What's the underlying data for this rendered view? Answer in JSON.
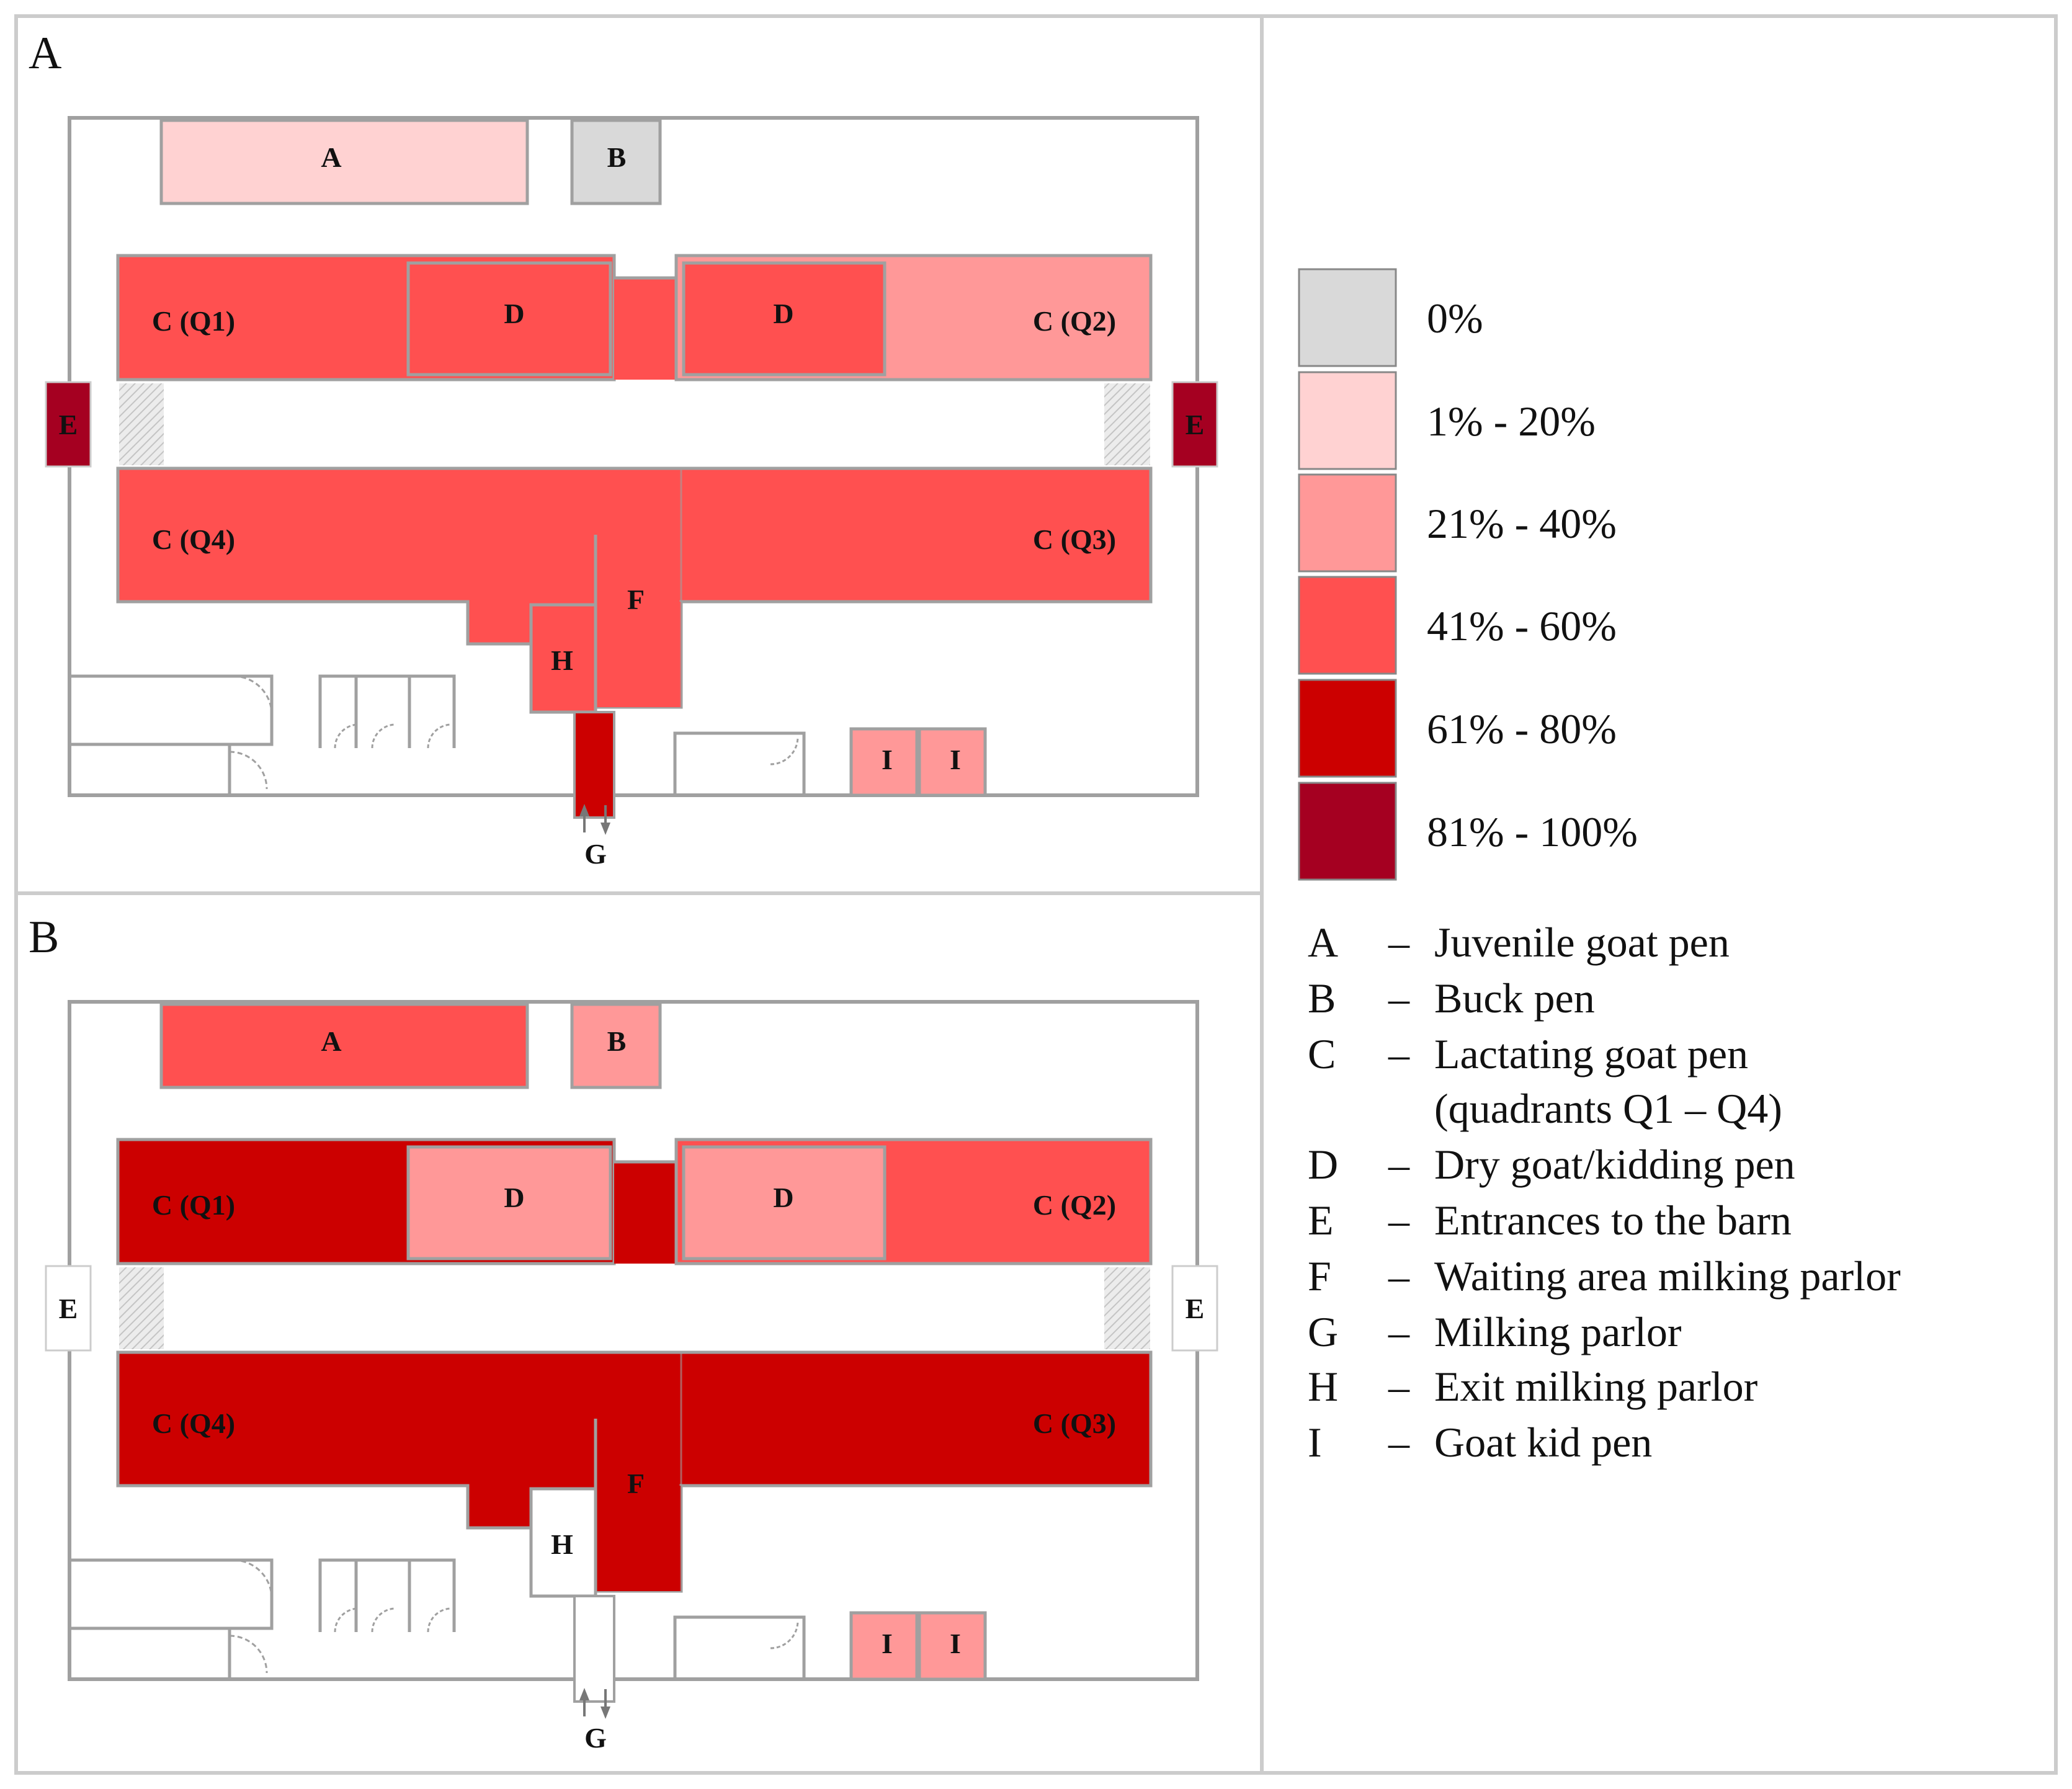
{
  "colors": {
    "p0": "#d9d9d9",
    "p1_20": "#ffd2d2",
    "p21_40": "#ff9898",
    "p41_60": "#ff5050",
    "p61_80": "#cc0000",
    "p81_100": "#a50021",
    "white": "#ffffff"
  },
  "panels": [
    {
      "id": "A",
      "label": "A",
      "zones": {
        "A": "p1_20",
        "B": "p0",
        "CQ1": "p41_60",
        "DLeft": "p41_60",
        "CMid": "p41_60",
        "DRight": "p41_60",
        "CQ2": "p21_40",
        "EL": "p81_100",
        "ER": "p81_100",
        "CQ4": "p41_60",
        "CQ3": "p41_60",
        "F": "p41_60",
        "H": "p41_60",
        "G": "p61_80",
        "I1": "p21_40",
        "I2": "p21_40"
      }
    },
    {
      "id": "B",
      "label": "B",
      "zones": {
        "A": "p41_60",
        "B": "p21_40",
        "CQ1": "p61_80",
        "DLeft": "p21_40",
        "CMid": "p61_80",
        "DRight": "p21_40",
        "CQ2": "p41_60",
        "EL": "white",
        "ER": "white",
        "CQ4": "p61_80",
        "CQ3": "p61_80",
        "F": "p61_80",
        "H": "white",
        "G": "white",
        "I1": "p21_40",
        "I2": "p21_40"
      }
    }
  ],
  "labels": {
    "A": "A",
    "B": "B",
    "CQ1": "C (Q1)",
    "CQ2": "C (Q2)",
    "CQ3": "C (Q3)",
    "CQ4": "C (Q4)",
    "D": "D",
    "E": "E",
    "F": "F",
    "G": "G",
    "H": "H",
    "I": "I"
  },
  "legend_scale": [
    {
      "key": "p0",
      "label": "0%"
    },
    {
      "key": "p1_20",
      "label": "1% - 20%"
    },
    {
      "key": "p21_40",
      "label": "21% - 40%"
    },
    {
      "key": "p41_60",
      "label": "41% - 60%"
    },
    {
      "key": "p61_80",
      "label": "61% - 80%"
    },
    {
      "key": "p81_100",
      "label": "81% - 100%"
    }
  ],
  "legend_key": [
    {
      "letter": "A",
      "dash": "–",
      "text": "Juvenile goat pen"
    },
    {
      "letter": "B",
      "dash": "–",
      "text": "Buck pen"
    },
    {
      "letter": "C",
      "dash": "–",
      "text": "Lactating goat pen"
    },
    {
      "letter": "",
      "dash": "",
      "text": "(quadrants Q1 – Q4)"
    },
    {
      "letter": "D",
      "dash": "–",
      "text": "Dry goat/kidding pen"
    },
    {
      "letter": "E",
      "dash": "–",
      "text": "Entrances to the barn"
    },
    {
      "letter": "F",
      "dash": "–",
      "text": "Waiting area milking parlor"
    },
    {
      "letter": "G",
      "dash": "–",
      "text": "Milking parlor"
    },
    {
      "letter": "H",
      "dash": "–",
      "text": "Exit milking parlor"
    },
    {
      "letter": "I",
      "dash": "–",
      "text": "Goat kid pen"
    }
  ]
}
